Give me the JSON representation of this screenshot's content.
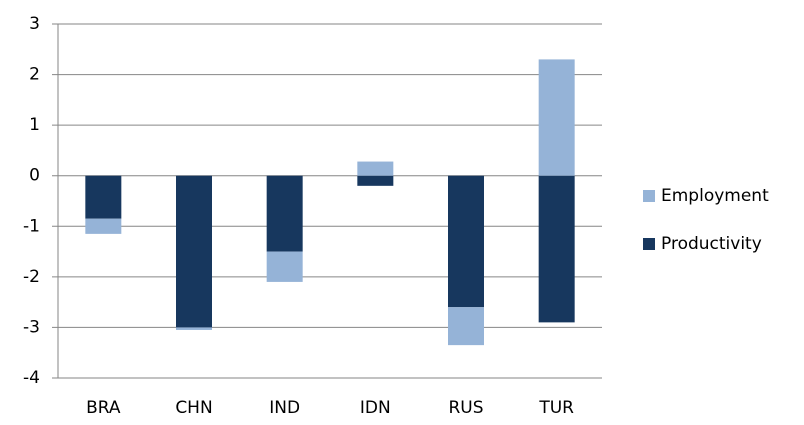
{
  "chart_data": {
    "type": "stacked-bar",
    "categories": [
      "BRA",
      "CHN",
      "IND",
      "IDN",
      "RUS",
      "TUR"
    ],
    "series": [
      {
        "name": "Productivity",
        "color": "#17375e",
        "values": [
          -0.85,
          -3.0,
          -1.5,
          -0.2,
          -2.6,
          -2.9
        ]
      },
      {
        "name": "Employment",
        "color": "#95b3d7",
        "values": [
          -0.3,
          -0.05,
          -0.6,
          0.28,
          -0.75,
          2.3
        ]
      }
    ],
    "ylim": [
      -4,
      3
    ],
    "yticks": [
      -4,
      -3,
      -2,
      -1,
      0,
      1,
      2,
      3
    ],
    "grid": true,
    "legend": "right"
  }
}
